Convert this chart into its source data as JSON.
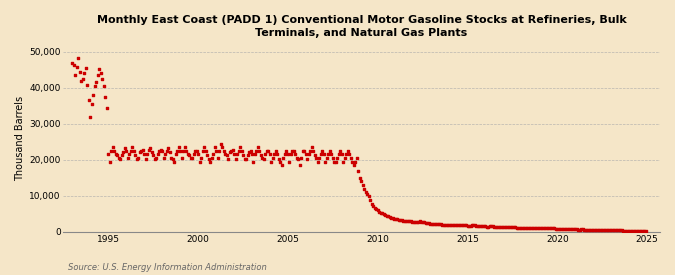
{
  "title": "Monthly East Coast (PADD 1) Conventional Motor Gasoline Stocks at Refineries, Bulk\nTerminals, and Natural Gas Plants",
  "ylabel": "Thousand Barrels",
  "source": "Source: U.S. Energy Information Administration",
  "background_color": "#f5e6c8",
  "plot_background_color": "#f5e6c8",
  "marker_color": "#cc0000",
  "ylim": [
    0,
    52000
  ],
  "yticks": [
    0,
    10000,
    20000,
    30000,
    40000,
    50000
  ],
  "ytick_labels": [
    "0",
    "10,000",
    "20,000",
    "30,000",
    "40,000",
    "50,000"
  ],
  "xlim_start": 1992.5,
  "xlim_end": 2025.7,
  "xticks": [
    1995,
    2000,
    2005,
    2010,
    2015,
    2020,
    2025
  ],
  "data_x": [
    1993.0,
    1993.083,
    1993.167,
    1993.25,
    1993.333,
    1993.417,
    1993.5,
    1993.583,
    1993.667,
    1993.75,
    1993.833,
    1993.917,
    1994.0,
    1994.083,
    1994.167,
    1994.25,
    1994.333,
    1994.417,
    1994.5,
    1994.583,
    1994.667,
    1994.75,
    1994.833,
    1994.917,
    1995.0,
    1995.083,
    1995.167,
    1995.25,
    1995.333,
    1995.417,
    1995.5,
    1995.583,
    1995.667,
    1995.75,
    1995.833,
    1995.917,
    1996.0,
    1996.083,
    1996.167,
    1996.25,
    1996.333,
    1996.417,
    1996.5,
    1996.583,
    1996.667,
    1996.75,
    1996.833,
    1996.917,
    1997.0,
    1997.083,
    1997.167,
    1997.25,
    1997.333,
    1997.417,
    1997.5,
    1997.583,
    1997.667,
    1997.75,
    1997.833,
    1997.917,
    1998.0,
    1998.083,
    1998.167,
    1998.25,
    1998.333,
    1998.417,
    1998.5,
    1998.583,
    1998.667,
    1998.75,
    1998.833,
    1998.917,
    1999.0,
    1999.083,
    1999.167,
    1999.25,
    1999.333,
    1999.417,
    1999.5,
    1999.583,
    1999.667,
    1999.75,
    1999.833,
    1999.917,
    2000.0,
    2000.083,
    2000.167,
    2000.25,
    2000.333,
    2000.417,
    2000.5,
    2000.583,
    2000.667,
    2000.75,
    2000.833,
    2000.917,
    2001.0,
    2001.083,
    2001.167,
    2001.25,
    2001.333,
    2001.417,
    2001.5,
    2001.583,
    2001.667,
    2001.75,
    2001.833,
    2001.917,
    2002.0,
    2002.083,
    2002.167,
    2002.25,
    2002.333,
    2002.417,
    2002.5,
    2002.583,
    2002.667,
    2002.75,
    2002.833,
    2002.917,
    2003.0,
    2003.083,
    2003.167,
    2003.25,
    2003.333,
    2003.417,
    2003.5,
    2003.583,
    2003.667,
    2003.75,
    2003.833,
    2003.917,
    2004.0,
    2004.083,
    2004.167,
    2004.25,
    2004.333,
    2004.417,
    2004.5,
    2004.583,
    2004.667,
    2004.75,
    2004.833,
    2004.917,
    2005.0,
    2005.083,
    2005.167,
    2005.25,
    2005.333,
    2005.417,
    2005.5,
    2005.583,
    2005.667,
    2005.75,
    2005.833,
    2005.917,
    2006.0,
    2006.083,
    2006.167,
    2006.25,
    2006.333,
    2006.417,
    2006.5,
    2006.583,
    2006.667,
    2006.75,
    2006.833,
    2006.917,
    2007.0,
    2007.083,
    2007.167,
    2007.25,
    2007.333,
    2007.417,
    2007.5,
    2007.583,
    2007.667,
    2007.75,
    2007.833,
    2007.917,
    2008.0,
    2008.083,
    2008.167,
    2008.25,
    2008.333,
    2008.417,
    2008.5,
    2008.583,
    2008.667,
    2008.75,
    2008.833,
    2008.917,
    2009.0,
    2009.083,
    2009.167,
    2009.25,
    2009.333,
    2009.417,
    2009.5,
    2009.583,
    2009.667,
    2009.75,
    2009.833,
    2009.917,
    2010.0,
    2010.083,
    2010.167,
    2010.25,
    2010.333,
    2010.417,
    2010.5,
    2010.583,
    2010.667,
    2010.75,
    2010.833,
    2010.917,
    2011.0,
    2011.083,
    2011.167,
    2011.25,
    2011.333,
    2011.417,
    2011.5,
    2011.583,
    2011.667,
    2011.75,
    2011.833,
    2011.917,
    2012.0,
    2012.083,
    2012.167,
    2012.25,
    2012.333,
    2012.417,
    2012.5,
    2012.583,
    2012.667,
    2012.75,
    2012.833,
    2012.917,
    2013.0,
    2013.083,
    2013.167,
    2013.25,
    2013.333,
    2013.417,
    2013.5,
    2013.583,
    2013.667,
    2013.75,
    2013.833,
    2013.917,
    2014.0,
    2014.083,
    2014.167,
    2014.25,
    2014.333,
    2014.417,
    2014.5,
    2014.583,
    2014.667,
    2014.75,
    2014.833,
    2014.917,
    2015.0,
    2015.083,
    2015.167,
    2015.25,
    2015.333,
    2015.417,
    2015.5,
    2015.583,
    2015.667,
    2015.75,
    2015.833,
    2015.917,
    2016.0,
    2016.083,
    2016.167,
    2016.25,
    2016.333,
    2016.417,
    2016.5,
    2016.583,
    2016.667,
    2016.75,
    2016.833,
    2016.917,
    2017.0,
    2017.083,
    2017.167,
    2017.25,
    2017.333,
    2017.417,
    2017.5,
    2017.583,
    2017.667,
    2017.75,
    2017.833,
    2017.917,
    2018.0,
    2018.083,
    2018.167,
    2018.25,
    2018.333,
    2018.417,
    2018.5,
    2018.583,
    2018.667,
    2018.75,
    2018.833,
    2018.917,
    2019.0,
    2019.083,
    2019.167,
    2019.25,
    2019.333,
    2019.417,
    2019.5,
    2019.583,
    2019.667,
    2019.75,
    2019.833,
    2019.917,
    2020.0,
    2020.083,
    2020.167,
    2020.25,
    2020.333,
    2020.417,
    2020.5,
    2020.583,
    2020.667,
    2020.75,
    2020.833,
    2020.917,
    2021.0,
    2021.083,
    2021.167,
    2021.25,
    2021.333,
    2021.417,
    2021.5,
    2021.583,
    2021.667,
    2021.75,
    2021.833,
    2021.917,
    2022.0,
    2022.083,
    2022.167,
    2022.25,
    2022.333,
    2022.417,
    2022.5,
    2022.583,
    2022.667,
    2022.75,
    2022.833,
    2022.917,
    2023.0,
    2023.083,
    2023.167,
    2023.25,
    2023.333,
    2023.417,
    2023.5,
    2023.583,
    2023.667,
    2023.75,
    2023.833,
    2023.917,
    2024.0,
    2024.083,
    2024.167,
    2024.25,
    2024.333,
    2024.417,
    2024.5,
    2024.583,
    2024.667,
    2024.75,
    2024.833,
    2024.917
  ],
  "data_y": [
    47000,
    46200,
    43500,
    45800,
    48200,
    44500,
    41800,
    42500,
    44200,
    45500,
    40800,
    36500,
    32000,
    35500,
    38000,
    40500,
    41500,
    43500,
    45200,
    44200,
    42500,
    40500,
    37500,
    34500,
    21500,
    19500,
    22500,
    23500,
    22500,
    21500,
    21200,
    20500,
    20200,
    21200,
    22200,
    23200,
    22500,
    20500,
    21500,
    22500,
    23500,
    22500,
    21200,
    20200,
    20500,
    22200,
    22500,
    22800,
    21500,
    20200,
    21500,
    22800,
    23200,
    22200,
    21200,
    20200,
    20500,
    21500,
    22500,
    22800,
    22500,
    20500,
    21500,
    22500,
    23200,
    22200,
    20500,
    20200,
    19500,
    21500,
    22500,
    23500,
    22500,
    20500,
    22500,
    23500,
    22500,
    21500,
    21200,
    20500,
    20500,
    21500,
    22500,
    22500,
    21500,
    19500,
    20500,
    22500,
    23500,
    22500,
    21200,
    20200,
    19500,
    20500,
    21500,
    23500,
    22500,
    20500,
    22500,
    24500,
    23500,
    22500,
    21500,
    21200,
    20200,
    22200,
    22500,
    22800,
    21500,
    20200,
    21500,
    22500,
    23500,
    22500,
    21200,
    20200,
    20200,
    21200,
    22200,
    22500,
    21500,
    19500,
    21500,
    22500,
    23500,
    22500,
    21200,
    20500,
    20200,
    21500,
    22500,
    22500,
    21500,
    19500,
    20500,
    21500,
    22500,
    21500,
    20200,
    19500,
    18500,
    20500,
    21500,
    22500,
    21500,
    19500,
    21500,
    22500,
    22500,
    21500,
    20500,
    20200,
    18500,
    20500,
    22500,
    22500,
    21500,
    20200,
    21500,
    22500,
    23500,
    22500,
    21200,
    20500,
    19500,
    20500,
    21500,
    22500,
    21500,
    19500,
    20500,
    21500,
    22500,
    21500,
    20500,
    19500,
    19500,
    20500,
    21500,
    22500,
    21500,
    19500,
    20500,
    21500,
    22500,
    21500,
    20500,
    19500,
    18500,
    19500,
    20500,
    17000,
    15000,
    14000,
    13000,
    12000,
    11000,
    10500,
    9800,
    8800,
    7800,
    7200,
    6700,
    6300,
    5900,
    5600,
    5300,
    5100,
    4900,
    4700,
    4500,
    4300,
    4100,
    3900,
    3700,
    3600,
    3500,
    3400,
    3350,
    3300,
    3200,
    3100,
    3050,
    3000,
    2950,
    2900,
    2850,
    2800,
    2800,
    2750,
    2700,
    2750,
    2900,
    2800,
    2700,
    2600,
    2500,
    2400,
    2300,
    2200,
    2200,
    2100,
    2100,
    2200,
    2200,
    2100,
    2100,
    2000,
    2000,
    2000,
    2000,
    1900,
    1900,
    1850,
    1900,
    1950,
    2000,
    2000,
    1900,
    1900,
    1900,
    1800,
    1800,
    1750,
    1700,
    1700,
    1700,
    1750,
    1800,
    1750,
    1700,
    1700,
    1650,
    1550,
    1500,
    1500,
    1500,
    1450,
    1420,
    1500,
    1500,
    1500,
    1420,
    1400,
    1380,
    1300,
    1280,
    1250,
    1250,
    1250,
    1250,
    1280,
    1300,
    1280,
    1220,
    1200,
    1180,
    1120,
    1100,
    1100,
    1100,
    1100,
    1080,
    1100,
    1100,
    1080,
    1080,
    1060,
    1080,
    1020,
    1000,
    1000,
    980,
    980,
    960,
    1050,
    1080,
    1060,
    1000,
    980,
    960,
    940,
    900,
    880,
    880,
    860,
    820,
    800,
    860,
    820,
    800,
    720,
    700,
    700,
    680,
    680,
    680,
    620,
    600,
    600,
    660,
    620,
    600,
    500,
    500,
    480,
    480,
    480,
    480,
    480,
    480,
    480,
    480,
    480,
    480,
    480,
    420,
    400,
    400,
    380,
    380,
    360,
    360,
    360,
    360,
    360,
    340,
    340,
    300,
    280,
    280,
    260,
    260,
    240,
    240,
    240,
    220,
    200,
    200,
    200,
    180,
    180,
    180,
    160
  ]
}
